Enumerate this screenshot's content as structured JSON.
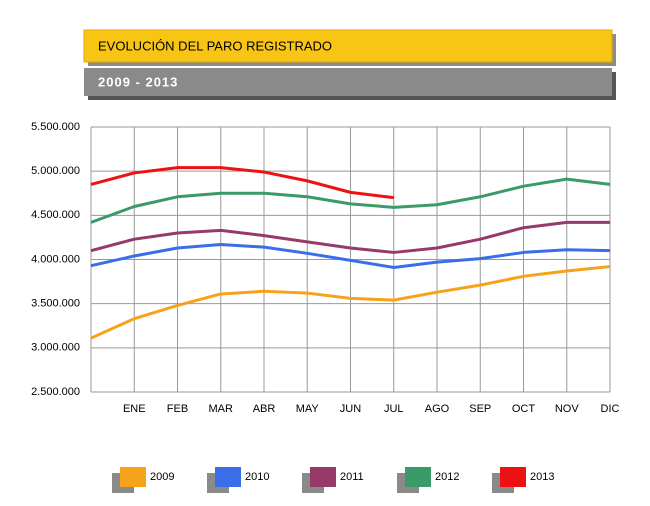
{
  "chart_data": {
    "type": "line",
    "title": "EVOLUCIÓN DEL PARO REGISTRADO",
    "subtitle": "2009 - 2013",
    "categories": [
      null,
      "ENE",
      "FEB",
      "MAR",
      "ABR",
      "MAY",
      "JUN",
      "JUL",
      "AGO",
      "SEP",
      "OCT",
      "NOV",
      "DIC"
    ],
    "series": [
      {
        "name": "2009",
        "color": "#f7a21b",
        "values": [
          3110000,
          3330000,
          3480000,
          3610000,
          3640000,
          3620000,
          3560000,
          3540000,
          3630000,
          3710000,
          3810000,
          3870000,
          3920000
        ]
      },
      {
        "name": "2010",
        "color": "#3a6ee8",
        "values": [
          3930000,
          4040000,
          4130000,
          4170000,
          4140000,
          4070000,
          3990000,
          3910000,
          3970000,
          4010000,
          4080000,
          4110000,
          4100000
        ]
      },
      {
        "name": "2011",
        "color": "#963a6a",
        "values": [
          4100000,
          4230000,
          4300000,
          4330000,
          4270000,
          4200000,
          4130000,
          4080000,
          4130000,
          4230000,
          4360000,
          4420000,
          4420000
        ]
      },
      {
        "name": "2012",
        "color": "#3a9a68",
        "values": [
          4420000,
          4600000,
          4710000,
          4750000,
          4750000,
          4710000,
          4630000,
          4590000,
          4620000,
          4710000,
          4830000,
          4910000,
          4850000
        ]
      },
      {
        "name": "2013",
        "color": "#ee1111",
        "values": [
          4850000,
          4980000,
          5040000,
          5040000,
          4990000,
          4890000,
          4760000,
          4700000,
          null,
          null,
          null,
          null,
          null
        ]
      }
    ],
    "ylim": [
      2500000,
      5500000
    ],
    "yticks": [
      {
        "value": 2500000,
        "label": "2.500.000"
      },
      {
        "value": 3000000,
        "label": "3.000.000"
      },
      {
        "value": 3500000,
        "label": "3.500.000"
      },
      {
        "value": 4000000,
        "label": "4.000.000"
      },
      {
        "value": 4500000,
        "label": "4.500.000"
      },
      {
        "value": 5000000,
        "label": "5.000.000"
      },
      {
        "value": 5500000,
        "label": "5.500.000"
      }
    ],
    "grid": true
  }
}
